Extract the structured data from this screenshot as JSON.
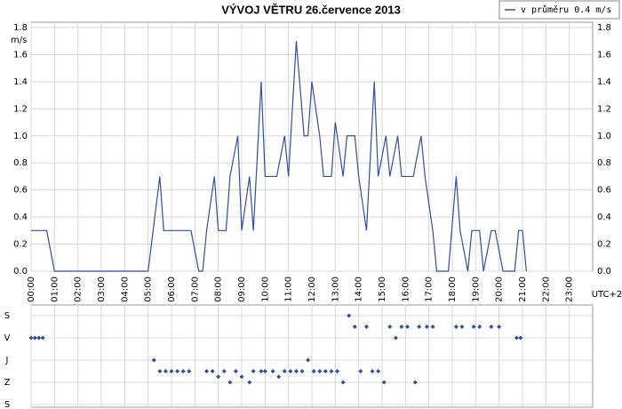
{
  "chart_data": [
    {
      "type": "line",
      "title": "VÝVOJ VĚTRU  26.července 2013",
      "ylabel": "m/s",
      "xlabel": "UTC+2",
      "grid": true,
      "legend": "top-right",
      "xlim": [
        0,
        1440
      ],
      "xticks": [
        {
          "value": 0,
          "label": "00:00"
        },
        {
          "value": 60,
          "label": "01:00"
        },
        {
          "value": 120,
          "label": "02:00"
        },
        {
          "value": 180,
          "label": "03:00"
        },
        {
          "value": 240,
          "label": "04:00"
        },
        {
          "value": 300,
          "label": "05:00"
        },
        {
          "value": 360,
          "label": "06:00"
        },
        {
          "value": 420,
          "label": "07:00"
        },
        {
          "value": 480,
          "label": "08:00"
        },
        {
          "value": 540,
          "label": "09:00"
        },
        {
          "value": 600,
          "label": "10:00"
        },
        {
          "value": 660,
          "label": "11:00"
        },
        {
          "value": 720,
          "label": "12:00"
        },
        {
          "value": 780,
          "label": "13:00"
        },
        {
          "value": 840,
          "label": "14:00"
        },
        {
          "value": 900,
          "label": "15:00"
        },
        {
          "value": 960,
          "label": "16:00"
        },
        {
          "value": 1020,
          "label": "17:00"
        },
        {
          "value": 1080,
          "label": "18:00"
        },
        {
          "value": 1140,
          "label": "19:00"
        },
        {
          "value": 1200,
          "label": "20:00"
        },
        {
          "value": 1260,
          "label": "21:00"
        },
        {
          "value": 1320,
          "label": "22:00"
        },
        {
          "value": 1380,
          "label": "23:00"
        }
      ],
      "ylim": [
        0,
        1.8
      ],
      "yticks": [
        {
          "value": 0,
          "label": "0.0"
        },
        0.2,
        0.4,
        0.6,
        0.8,
        {
          "value": 1,
          "label": "1.0"
        },
        1.2,
        1.4,
        1.6,
        1.8
      ],
      "x": [
        0,
        40,
        60,
        300,
        330,
        340,
        410,
        430,
        440,
        450,
        470,
        480,
        500,
        510,
        530,
        540,
        560,
        570,
        590,
        600,
        630,
        650,
        660,
        680,
        700,
        710,
        720,
        740,
        750,
        770,
        780,
        800,
        810,
        830,
        840,
        860,
        880,
        890,
        910,
        920,
        940,
        950,
        980,
        1000,
        1010,
        1030,
        1040,
        1070,
        1090,
        1100,
        1120,
        1130,
        1150,
        1160,
        1180,
        1190,
        1210,
        1240,
        1250,
        1260,
        1270
      ],
      "series": [
        {
          "name": "v průměru 0.4 m/s",
          "color": "#2f4f9f",
          "values": [
            0.3,
            0.3,
            0,
            0,
            0.7,
            0.3,
            0.3,
            0,
            0,
            0.3,
            0.7,
            0.3,
            0.3,
            0.7,
            1.0,
            0.3,
            0.7,
            0.3,
            1.4,
            0.7,
            0.7,
            1.0,
            0.7,
            1.7,
            1.0,
            1.0,
            1.4,
            1.0,
            0.7,
            0.7,
            1.1,
            0.7,
            1.0,
            1.0,
            0.7,
            0.3,
            1.4,
            0.7,
            1.0,
            0.7,
            1.0,
            0.7,
            0.7,
            1.0,
            0.7,
            0.3,
            0,
            0,
            0.7,
            0.3,
            0,
            0.3,
            0.3,
            0,
            0.3,
            0.3,
            0,
            0,
            0.3,
            0.3,
            0
          ]
        }
      ]
    },
    {
      "type": "scatter",
      "grid": true,
      "xlim": [
        0,
        1440
      ],
      "ylim": [
        360,
        0
      ],
      "yticks": [
        {
          "value": 0,
          "label": "S"
        },
        {
          "value": 90,
          "label": "V"
        },
        {
          "value": 180,
          "label": "J"
        },
        {
          "value": 270,
          "label": "Z"
        },
        {
          "value": 360,
          "label": "S"
        }
      ],
      "x": [
        0,
        10,
        20,
        30,
        315,
        330,
        345,
        360,
        375,
        390,
        405,
        450,
        465,
        480,
        495,
        510,
        525,
        540,
        560,
        570,
        590,
        600,
        620,
        635,
        650,
        665,
        680,
        695,
        710,
        725,
        740,
        755,
        770,
        785,
        800,
        815,
        830,
        845,
        860,
        875,
        890,
        905,
        920,
        935,
        950,
        965,
        985,
        995,
        1015,
        1030,
        1090,
        1105,
        1135,
        1150,
        1180,
        1200,
        1245,
        1255
      ],
      "color": "#2f4f9f",
      "values": [
        90,
        90,
        90,
        90,
        180,
        225,
        225,
        225,
        225,
        225,
        225,
        225,
        225,
        247.5,
        225,
        270,
        225,
        247.5,
        270,
        225,
        225,
        225,
        225,
        247.5,
        225,
        225,
        225,
        225,
        180,
        225,
        225,
        225,
        225,
        225,
        270,
        0,
        45,
        225,
        45,
        225,
        225,
        270,
        45,
        90,
        45,
        45,
        270,
        45,
        45,
        45,
        45,
        45,
        45,
        45,
        45,
        45,
        90,
        90
      ]
    }
  ]
}
